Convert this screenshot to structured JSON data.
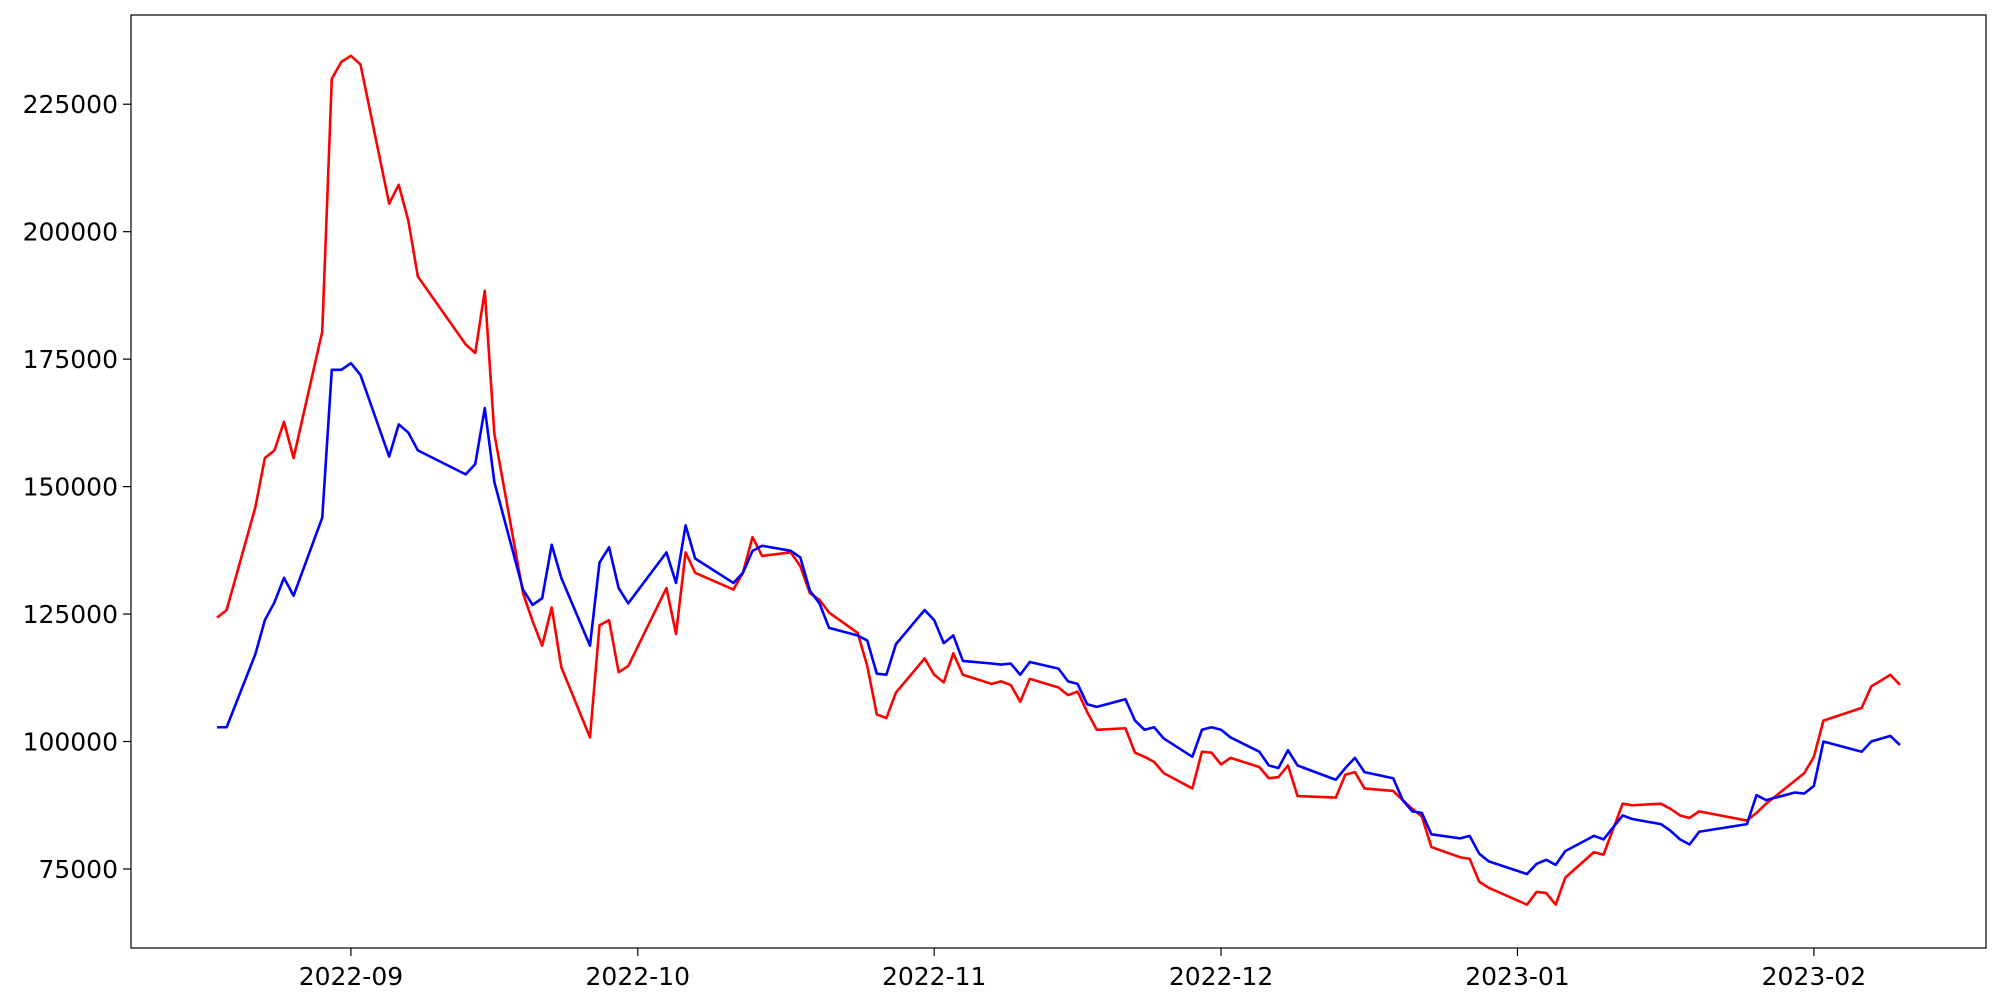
{
  "chart_data": {
    "type": "line",
    "x": [
      "2022-08-18",
      "2022-08-19",
      "2022-08-22",
      "2022-08-23",
      "2022-08-24",
      "2022-08-25",
      "2022-08-26",
      "2022-08-29",
      "2022-08-30",
      "2022-08-31",
      "2022-09-01",
      "2022-09-02",
      "2022-09-05",
      "2022-09-06",
      "2022-09-07",
      "2022-09-08",
      "2022-09-13",
      "2022-09-14",
      "2022-09-15",
      "2022-09-16",
      "2022-09-19",
      "2022-09-20",
      "2022-09-21",
      "2022-09-22",
      "2022-09-23",
      "2022-09-26",
      "2022-09-27",
      "2022-09-28",
      "2022-09-29",
      "2022-09-30",
      "2022-10-04",
      "2022-10-05",
      "2022-10-06",
      "2022-10-07",
      "2022-10-11",
      "2022-10-12",
      "2022-10-13",
      "2022-10-14",
      "2022-10-17",
      "2022-10-18",
      "2022-10-19",
      "2022-10-20",
      "2022-10-21",
      "2022-10-24",
      "2022-10-25",
      "2022-10-26",
      "2022-10-27",
      "2022-10-28",
      "2022-10-31",
      "2022-11-01",
      "2022-11-02",
      "2022-11-03",
      "2022-11-04",
      "2022-11-07",
      "2022-11-08",
      "2022-11-09",
      "2022-11-10",
      "2022-11-11",
      "2022-11-14",
      "2022-11-15",
      "2022-11-16",
      "2022-11-17",
      "2022-11-18",
      "2022-11-21",
      "2022-11-22",
      "2022-11-23",
      "2022-11-24",
      "2022-11-25",
      "2022-11-28",
      "2022-11-29",
      "2022-11-30",
      "2022-12-01",
      "2022-12-02",
      "2022-12-05",
      "2022-12-06",
      "2022-12-07",
      "2022-12-08",
      "2022-12-09",
      "2022-12-13",
      "2022-12-14",
      "2022-12-15",
      "2022-12-16",
      "2022-12-19",
      "2022-12-20",
      "2022-12-21",
      "2022-12-22",
      "2022-12-23",
      "2022-12-26",
      "2022-12-27",
      "2022-12-28",
      "2022-12-29",
      "2023-01-02",
      "2023-01-03",
      "2023-01-04",
      "2023-01-05",
      "2023-01-06",
      "2023-01-09",
      "2023-01-10",
      "2023-01-12",
      "2023-01-13",
      "2023-01-16",
      "2023-01-17",
      "2023-01-18",
      "2023-01-19",
      "2023-01-20",
      "2023-01-25",
      "2023-01-26",
      "2023-01-27",
      "2023-01-30",
      "2023-01-31",
      "2023-02-01",
      "2023-02-02",
      "2023-02-06",
      "2023-02-07",
      "2023-02-09",
      "2023-02-10"
    ],
    "series": [
      {
        "color": "#ff0000",
        "values": [
          124300,
          125800,
          145900,
          155600,
          157100,
          162700,
          155600,
          180400,
          230000,
          233300,
          234500,
          232800,
          205500,
          209200,
          202200,
          191200,
          177900,
          176200,
          188400,
          160400,
          129100,
          123600,
          118800,
          126300,
          114600,
          100800,
          122800,
          123800,
          113600,
          114800,
          130100,
          121100,
          137100,
          133100,
          129800,
          133100,
          140100,
          136400,
          137100,
          134400,
          129100,
          127800,
          125300,
          121300,
          114800,
          105300,
          104600,
          109600,
          116300,
          113100,
          111600,
          117300,
          113100,
          111300,
          111800,
          111100,
          107800,
          112300,
          110600,
          109100,
          109800,
          105800,
          102300,
          102600,
          97800,
          97000,
          96000,
          93800,
          90800,
          98000,
          97800,
          95500,
          96800,
          95000,
          92800,
          93000,
          95300,
          89300,
          89000,
          93500,
          94000,
          90800,
          90300,
          88500,
          86800,
          85300,
          79300,
          77300,
          77000,
          72500,
          71300,
          68000,
          70500,
          70300,
          68000,
          73300,
          78300,
          77800,
          87800,
          87500,
          87800,
          86800,
          85500,
          85000,
          86300,
          84500,
          86000,
          87800,
          92300,
          93800,
          97000,
          104100,
          106600,
          110800,
          113100,
          111100
        ]
      },
      {
        "color": "#0000ff",
        "values": [
          102800,
          102800,
          117100,
          123800,
          127300,
          132100,
          128600,
          143900,
          172900,
          172900,
          174200,
          171900,
          155900,
          162200,
          160600,
          157100,
          152400,
          154400,
          165400,
          150900,
          129800,
          126800,
          128100,
          138600,
          132100,
          118800,
          135100,
          138100,
          130100,
          127100,
          137100,
          131100,
          142400,
          135900,
          131100,
          133100,
          137400,
          138400,
          137400,
          136100,
          129600,
          127100,
          122300,
          120800,
          119800,
          113300,
          113100,
          119100,
          125800,
          123800,
          119300,
          120800,
          115800,
          115300,
          115100,
          115300,
          113100,
          115600,
          114300,
          111800,
          111300,
          107300,
          106800,
          108300,
          104100,
          102300,
          102800,
          100600,
          97000,
          102300,
          102800,
          102300,
          100800,
          98000,
          95300,
          94800,
          98300,
          95300,
          92500,
          94800,
          96800,
          94000,
          92800,
          88500,
          86300,
          86000,
          81800,
          81000,
          81500,
          78000,
          76500,
          74000,
          76000,
          76800,
          75800,
          78500,
          81500,
          80800,
          85500,
          84800,
          83800,
          82500,
          80800,
          79800,
          82300,
          83800,
          89500,
          88500,
          90000,
          89800,
          91300,
          100000,
          98000,
          100000,
          101100,
          99300
        ]
      }
    ],
    "xlim": [
      "2022-08-09",
      "2023-02-19"
    ],
    "xticks": [
      {
        "value": "2022-09-01",
        "label": "2022-09"
      },
      {
        "value": "2022-10-01",
        "label": "2022-10"
      },
      {
        "value": "2022-11-01",
        "label": "2022-11"
      },
      {
        "value": "2022-12-01",
        "label": "2022-12"
      },
      {
        "value": "2023-01-01",
        "label": "2023-01"
      },
      {
        "value": "2023-02-01",
        "label": "2023-02"
      }
    ],
    "ylim": [
      59500,
      242500
    ],
    "yticks": [
      75000,
      100000,
      125000,
      150000,
      175000,
      200000,
      225000
    ],
    "grid": false
  }
}
